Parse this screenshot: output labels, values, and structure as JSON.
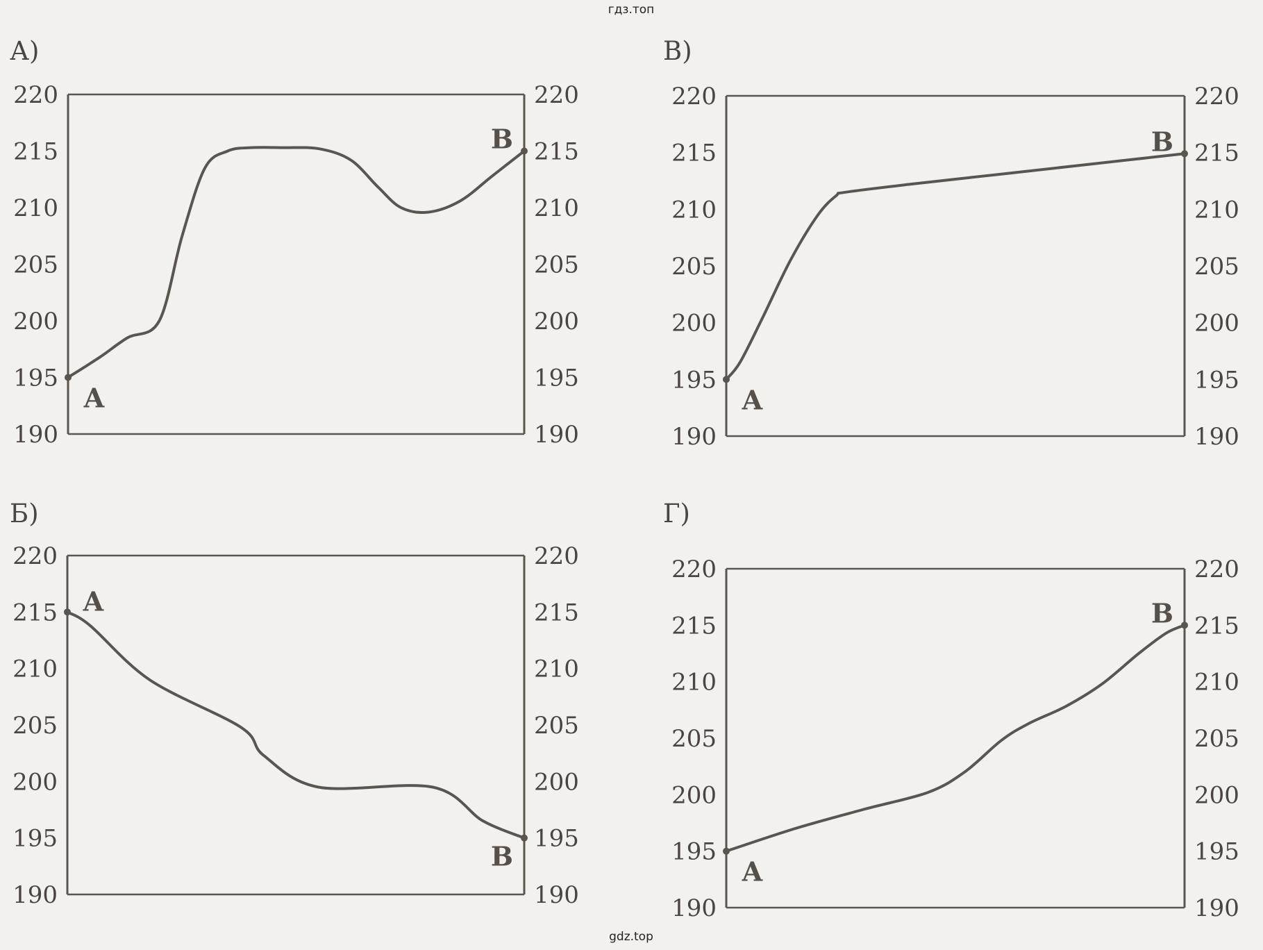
{
  "watermark_top": "гдз.топ",
  "watermark_bottom": "gdz.top",
  "colors": {
    "background": "#f3f1ee",
    "ink": "#5a554f",
    "text": "#4a4540"
  },
  "chart_data": [
    {
      "id": "A",
      "panel_label": "А)",
      "type": "line",
      "ylim": [
        190,
        220
      ],
      "yticks": [
        "220",
        "215",
        "210",
        "205",
        "200",
        "195",
        "190"
      ],
      "yticks_right": [
        "220",
        "215",
        "210",
        "205",
        "200",
        "195",
        "190"
      ],
      "xlim": [
        0,
        1
      ],
      "grid": false,
      "start_label": "А",
      "end_label": "В",
      "series": [
        {
          "x": [
            0,
            0.07,
            0.13,
            0.2,
            0.25,
            0.3,
            0.35,
            0.4,
            0.47,
            0.55,
            0.62,
            0.68,
            0.73,
            0.79,
            0.86,
            0.93,
            1.0
          ],
          "y": [
            195,
            196.8,
            198.5,
            200,
            207.5,
            213.5,
            215,
            215.3,
            215.3,
            215.2,
            214.2,
            211.8,
            210,
            209.6,
            210.6,
            212.8,
            215
          ]
        }
      ]
    },
    {
      "id": "V",
      "panel_label": "В)",
      "type": "line",
      "ylim": [
        190,
        220
      ],
      "yticks": [
        "220",
        "215",
        "210",
        "205",
        "200",
        "195",
        "190"
      ],
      "yticks_right": [
        "220",
        "215",
        "210",
        "205",
        "200",
        "195",
        "190"
      ],
      "xlim": [
        0,
        1
      ],
      "grid": false,
      "start_label": "А",
      "end_label": "В",
      "series": [
        {
          "x": [
            0,
            0.03,
            0.08,
            0.14,
            0.2,
            0.24,
            0.26,
            0.4,
            0.6,
            0.8,
            1.0
          ],
          "y": [
            195,
            196.5,
            200.5,
            205.5,
            209.5,
            211.2,
            211.5,
            212.2,
            213.1,
            214.0,
            214.9
          ]
        }
      ]
    },
    {
      "id": "B",
      "panel_label": "Б)",
      "type": "line",
      "ylim": [
        190,
        220
      ],
      "yticks": [
        "220",
        "215",
        "210",
        "205",
        "200",
        "195",
        "190"
      ],
      "yticks_right": [
        "220",
        "215",
        "210",
        "205",
        "200",
        "195",
        "190"
      ],
      "xlim": [
        0,
        1
      ],
      "grid": false,
      "start_label": "А",
      "end_label": "В",
      "series": [
        {
          "x": [
            0,
            0.05,
            0.18,
            0.38,
            0.43,
            0.55,
            0.8,
            0.91,
            1.0
          ],
          "y": [
            215,
            213.8,
            209,
            204.8,
            202.3,
            199.5,
            199.5,
            196.5,
            195
          ]
        }
      ]
    },
    {
      "id": "G",
      "panel_label": "Г)",
      "type": "line",
      "ylim": [
        190,
        220
      ],
      "yticks": [
        "220",
        "215",
        "210",
        "205",
        "200",
        "195",
        "190"
      ],
      "yticks_right": [
        "220",
        "215",
        "210",
        "205",
        "200",
        "195",
        "190"
      ],
      "xlim": [
        0,
        1
      ],
      "grid": false,
      "start_label": "А",
      "end_label": "В",
      "series": [
        {
          "x": [
            0,
            0.15,
            0.3,
            0.44,
            0.52,
            0.6,
            0.66,
            0.74,
            0.82,
            0.9,
            0.96,
            1.0
          ],
          "y": [
            195,
            197,
            198.7,
            200.2,
            202,
            204.8,
            206.3,
            207.8,
            209.8,
            212.5,
            214.3,
            215
          ]
        }
      ]
    }
  ]
}
